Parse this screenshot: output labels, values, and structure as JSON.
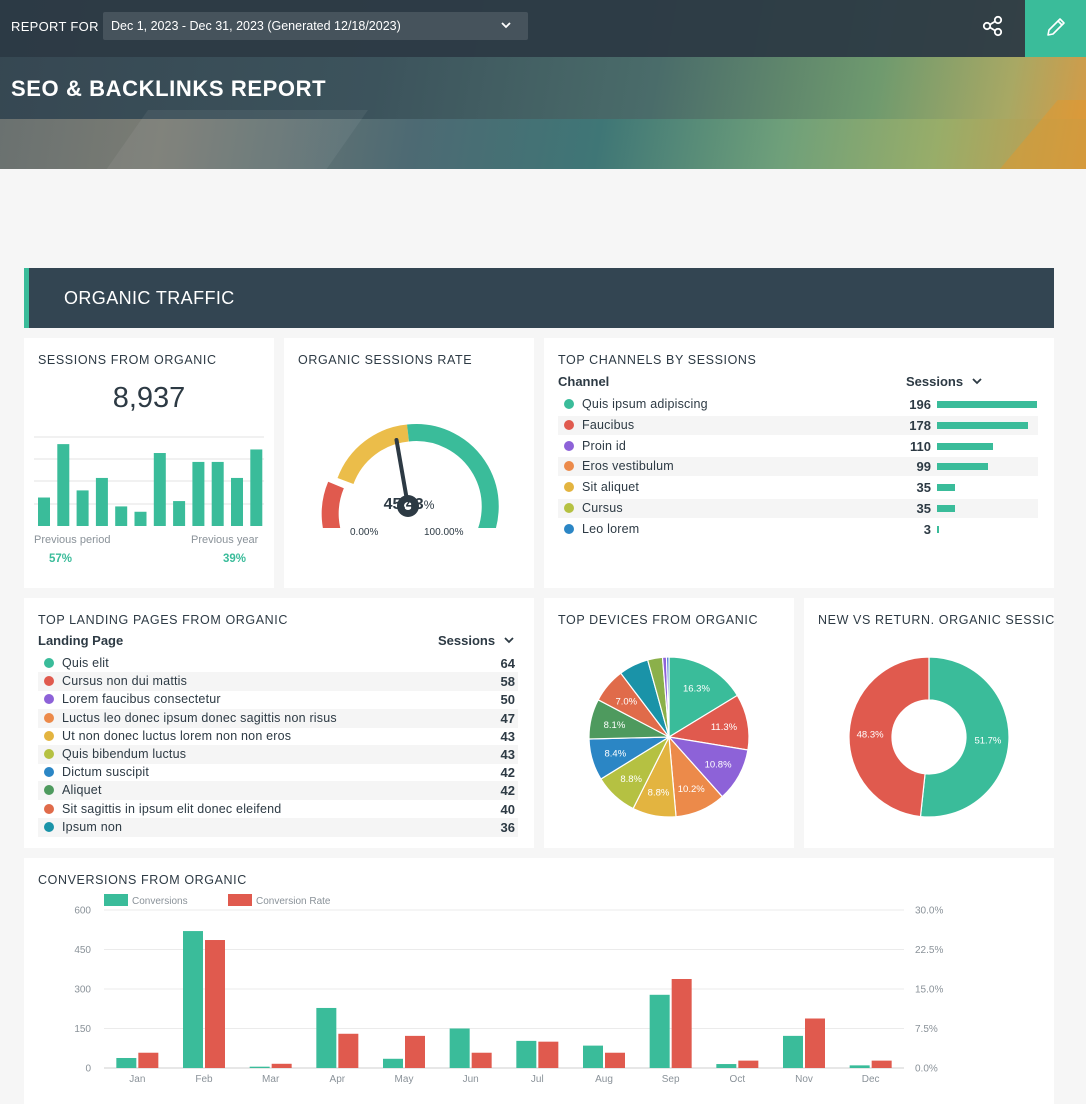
{
  "header": {
    "report_for_label": "REPORT FOR",
    "date_range": "Dec 1, 2023 - Dec 31, 2023 (Generated 12/18/2023)",
    "title": "SEO & BACKLINKS REPORT",
    "share_icon": "share-icon",
    "edit_icon": "pencil-icon",
    "accent": "#3abc9a"
  },
  "section": {
    "title": "ORGANIC TRAFFIC"
  },
  "sessions": {
    "title": "SESSIONS FROM ORGANIC",
    "value": "8,937",
    "bars": [
      16,
      46,
      20,
      27,
      11,
      8,
      41,
      14,
      36,
      36,
      27,
      43
    ],
    "previous_period_label": "Previous period",
    "previous_period_value": "57%",
    "previous_year_label": "Previous year",
    "previous_year_value": "39%"
  },
  "rate": {
    "title": "ORGANIC SESSIONS RATE",
    "value": "45.43",
    "unit": "%",
    "min": "0.00%",
    "max": "100.00%",
    "percent": 45.43
  },
  "channels": {
    "title": "TOP CHANNELS BY SESSIONS",
    "col_channel": "Channel",
    "col_sessions": "Sessions",
    "rows": [
      {
        "label": "Quis ipsum adipiscing",
        "value": "196",
        "n": 196,
        "color": "#3abc9a"
      },
      {
        "label": "Faucibus",
        "value": "178",
        "n": 178,
        "color": "#e05a4e"
      },
      {
        "label": "Proin id",
        "value": "110",
        "n": 110,
        "color": "#8d62d8"
      },
      {
        "label": "Eros vestibulum",
        "value": "99",
        "n": 99,
        "color": "#ec8a4a"
      },
      {
        "label": "Sit aliquet",
        "value": "35",
        "n": 35,
        "color": "#e3b440"
      },
      {
        "label": "Cursus",
        "value": "35",
        "n": 35,
        "color": "#b5c142"
      },
      {
        "label": "Leo lorem",
        "value": "3",
        "n": 3,
        "color": "#2b86c5"
      }
    ]
  },
  "landing": {
    "title": "TOP LANDING PAGES FROM ORGANIC",
    "col_page": "Landing Page",
    "col_sessions": "Sessions",
    "rows": [
      {
        "label": "Quis elit",
        "value": "64",
        "color": "#3abc9a"
      },
      {
        "label": "Cursus non dui mattis",
        "value": "58",
        "color": "#e05a4e"
      },
      {
        "label": "Lorem faucibus consectetur",
        "value": "50",
        "color": "#8d62d8"
      },
      {
        "label": "Luctus leo donec ipsum donec sagittis non risus",
        "value": "47",
        "color": "#ec8a4a"
      },
      {
        "label": "Ut non donec luctus lorem non non eros",
        "value": "43",
        "color": "#e3b440"
      },
      {
        "label": "Quis bibendum luctus",
        "value": "43",
        "color": "#b5c142"
      },
      {
        "label": "Dictum suscipit",
        "value": "42",
        "color": "#2b86c5"
      },
      {
        "label": "Aliquet",
        "value": "42",
        "color": "#4e9a5e"
      },
      {
        "label": "Sit sagittis in ipsum elit donec eleifend",
        "value": "40",
        "color": "#e06b4a"
      },
      {
        "label": "Ipsum non",
        "value": "36",
        "color": "#1a93a8"
      }
    ]
  },
  "devices": {
    "title": "TOP DEVICES FROM ORGANIC",
    "slices": [
      {
        "value": 16.3,
        "label": "16.3%",
        "color": "#3abc9a"
      },
      {
        "value": 11.3,
        "label": "11.3%",
        "color": "#e05a4e"
      },
      {
        "value": 10.8,
        "label": "10.8%",
        "color": "#8d62d8"
      },
      {
        "value": 10.2,
        "label": "10.2%",
        "color": "#ec8a4a"
      },
      {
        "value": 8.8,
        "label": "8.8%",
        "color": "#e3b440"
      },
      {
        "value": 8.8,
        "label": "8.8%",
        "color": "#b5c142"
      },
      {
        "value": 8.4,
        "label": "8.4%",
        "color": "#2b86c5"
      },
      {
        "value": 8.1,
        "label": "8.1%",
        "color": "#4e9a5e"
      },
      {
        "value": 7.0,
        "label": "7.0%",
        "color": "#e06b4a"
      },
      {
        "value": 6.0,
        "label": "",
        "color": "#1a93a8"
      },
      {
        "value": 3.0,
        "label": "",
        "color": "#8bb04a"
      },
      {
        "value": 0.8,
        "label": "",
        "color": "#8d62d8"
      },
      {
        "value": 0.5,
        "label": "",
        "color": "#3f6fd0"
      }
    ]
  },
  "new_vs_return": {
    "title": "NEW VS RETURN. ORGANIC SESSIC",
    "slices": [
      {
        "value": 51.7,
        "label": "51.7%",
        "color": "#3abc9a"
      },
      {
        "value": 48.3,
        "label": "48.3%",
        "color": "#e05a4e"
      }
    ]
  },
  "conversions": {
    "title": "CONVERSIONS FROM ORGANIC",
    "legend": [
      "Conversions",
      "Conversion Rate"
    ]
  },
  "chart_data": {
    "type": "bar",
    "categories": [
      "Jan",
      "Feb",
      "Mar",
      "Apr",
      "May",
      "Jun",
      "Jul",
      "Aug",
      "Sep",
      "Oct",
      "Nov",
      "Dec"
    ],
    "series": [
      {
        "name": "Conversions",
        "axis": "left",
        "color": "#3abc9a",
        "values": [
          38,
          520,
          5,
          228,
          35,
          150,
          103,
          85,
          278,
          15,
          122,
          10
        ]
      },
      {
        "name": "Conversion Rate",
        "axis": "right",
        "color": "#e05a4e",
        "values": [
          2.9,
          24.3,
          0.8,
          6.5,
          6.1,
          2.9,
          5.0,
          2.9,
          16.9,
          1.4,
          9.4,
          1.4
        ]
      }
    ],
    "ylim_left": [
      0,
      600
    ],
    "ylim_right": [
      0,
      30
    ],
    "yticks_left": [
      "600",
      "450",
      "300",
      "150",
      "0"
    ],
    "yticks_right": [
      "30.0%",
      "22.5%",
      "15.0%",
      "7.5%",
      "0.0%"
    ],
    "grid": true,
    "legend_position": "top-left"
  }
}
